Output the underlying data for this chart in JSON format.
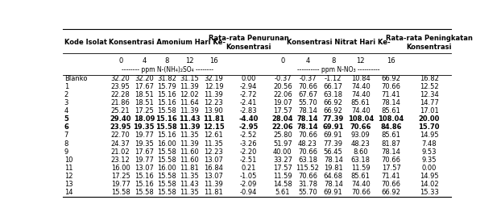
{
  "rows": [
    [
      "Blanko",
      "32.20",
      "32.20",
      "31.82",
      "31.15",
      "32.19",
      "0.00",
      "-0.37",
      "-0.37",
      "-1.12",
      "10.84",
      "66.92",
      "16.82"
    ],
    [
      "1",
      "23.95",
      "17.67",
      "15.79",
      "11.39",
      "12.19",
      "-2.94",
      "20.56",
      "70.66",
      "66.17",
      "74.40",
      "70.66",
      "12.52"
    ],
    [
      "2",
      "22.28",
      "18.51",
      "15.16",
      "12.02",
      "11.39",
      "-2.72",
      "22.06",
      "67.67",
      "63.18",
      "74.40",
      "71.41",
      "12.34"
    ],
    [
      "3",
      "21.86",
      "18.51",
      "15.16",
      "11.64",
      "12.23",
      "-2.41",
      "19.07",
      "55.70",
      "66.92",
      "85.61",
      "78.14",
      "14.77"
    ],
    [
      "4",
      "25.21",
      "17.25",
      "15.58",
      "11.39",
      "13.90",
      "-2.83",
      "17.57",
      "78.14",
      "66.92",
      "74.40",
      "85.61",
      "17.01"
    ],
    [
      "5",
      "29.40",
      "18.09",
      "15.16",
      "11.43",
      "11.81",
      "-4.40",
      "28.04",
      "78.14",
      "77.39",
      "108.04",
      "108.04",
      "20.00"
    ],
    [
      "6",
      "23.95",
      "19.35",
      "15.58",
      "11.39",
      "12.15",
      "-2.95",
      "22.06",
      "78.14",
      "69.91",
      "70.66",
      "84.86",
      "15.70"
    ],
    [
      "7",
      "22.70",
      "19.77",
      "15.16",
      "11.35",
      "12.61",
      "-2.52",
      "25.80",
      "70.66",
      "69.91",
      "93.09",
      "85.61",
      "14.95"
    ],
    [
      "8",
      "24.37",
      "19.35",
      "16.00",
      "11.39",
      "11.35",
      "-3.26",
      "51.97",
      "48.23",
      "77.39",
      "48.23",
      "81.87",
      "7.48"
    ],
    [
      "9",
      "21.02",
      "17.67",
      "15.58",
      "11.60",
      "12.23",
      "-2.20",
      "40.00",
      "70.66",
      "56.45",
      "8.60",
      "78.14",
      "9.53"
    ],
    [
      "10",
      "23.12",
      "19.77",
      "15.58",
      "11.60",
      "13.07",
      "-2.51",
      "33.27",
      "63.18",
      "78.14",
      "63.18",
      "70.66",
      "9.35"
    ],
    [
      "11",
      "16.00",
      "13.07",
      "16.00",
      "11.81",
      "16.84",
      "0.21",
      "17.57",
      "115.52",
      "19.81",
      "11.59",
      "17.57",
      "0.00"
    ],
    [
      "12",
      "17.25",
      "15.16",
      "15.58",
      "11.35",
      "13.07",
      "-1.05",
      "11.59",
      "70.66",
      "64.68",
      "85.61",
      "71.41",
      "14.95"
    ],
    [
      "13",
      "19.77",
      "15.16",
      "15.58",
      "11.43",
      "11.39",
      "-2.09",
      "14.58",
      "31.78",
      "78.14",
      "74.40",
      "70.66",
      "14.02"
    ],
    [
      "14",
      "15.58",
      "15.58",
      "15.58",
      "11.35",
      "11.81",
      "-0.94",
      "5.61",
      "55.70",
      "69.91",
      "70.66",
      "66.92",
      "15.33"
    ]
  ],
  "bold_row_labels": [
    "5",
    "6"
  ],
  "font_size": 6.0,
  "header_font_size": 6.0
}
